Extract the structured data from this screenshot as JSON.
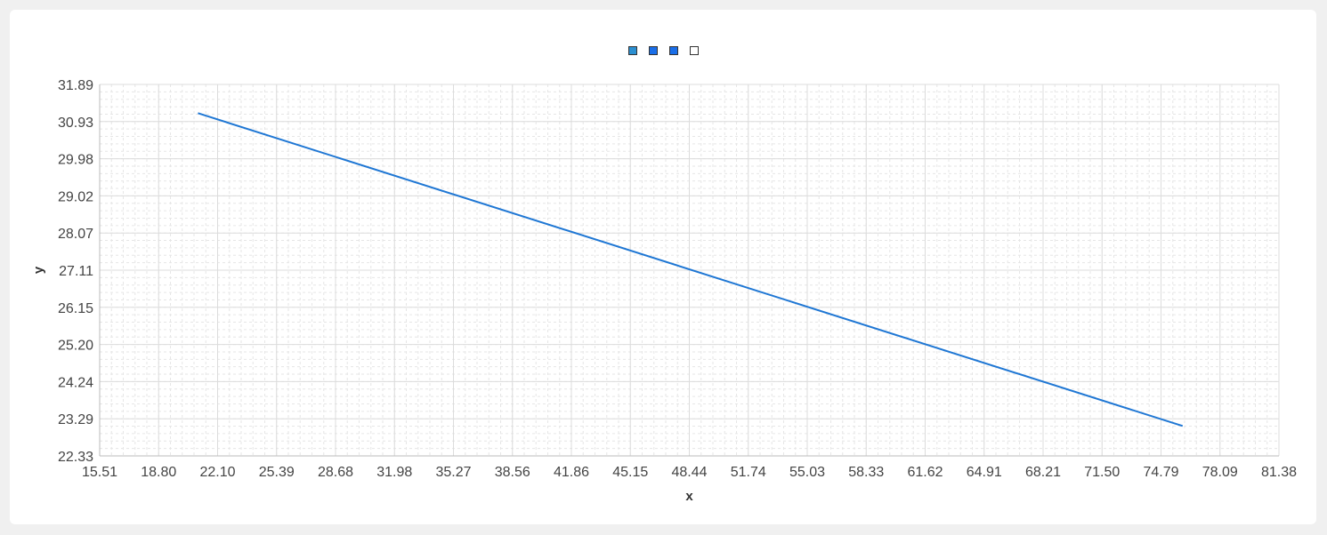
{
  "legend": {
    "swatches": [
      {
        "color": "#2b8fd1"
      },
      {
        "color": "#1a6ee8"
      },
      {
        "color": "#1a6ee8"
      },
      {
        "color": "#ffffff"
      }
    ]
  },
  "chart_data": {
    "type": "line",
    "xlabel": "x",
    "ylabel": "y",
    "xlim": [
      15.51,
      81.38
    ],
    "ylim": [
      22.33,
      31.89
    ],
    "x_ticks": [
      "15.51",
      "18.80",
      "22.10",
      "25.39",
      "28.68",
      "31.98",
      "35.27",
      "38.56",
      "41.86",
      "45.15",
      "48.44",
      "51.74",
      "55.03",
      "58.33",
      "61.62",
      "64.91",
      "68.21",
      "71.50",
      "74.79",
      "78.09",
      "81.38"
    ],
    "y_ticks": [
      "22.33",
      "23.29",
      "24.24",
      "25.20",
      "26.15",
      "27.11",
      "28.07",
      "29.02",
      "29.98",
      "30.93",
      "31.89"
    ],
    "grid": true,
    "legend_position": "top-center",
    "line_color": "#1f77d4",
    "series": [
      {
        "x": [
          21.0,
          76.0
        ],
        "y": [
          31.15,
          23.1
        ]
      }
    ]
  }
}
